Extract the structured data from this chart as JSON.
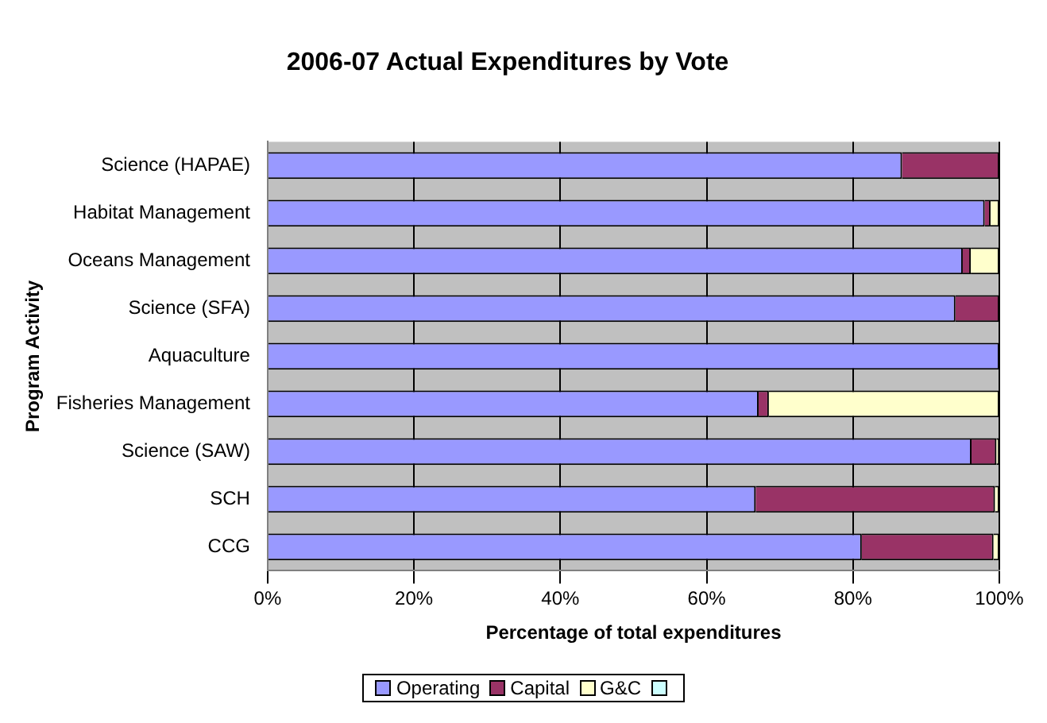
{
  "chart_data": {
    "type": "bar",
    "orientation": "horizontal",
    "stacked": true,
    "title": "2006-07 Actual Expenditures by Vote",
    "xlabel": "Percentage of total expenditures",
    "ylabel": "Program Activity",
    "categories": [
      "Science (HAPAE)",
      "Habitat Management",
      "Oceans Management",
      "Science (SFA)",
      "Aquaculture",
      "Fisheries Management",
      "Science (SAW)",
      "SCH",
      "CCG"
    ],
    "series": [
      {
        "name": "Operating",
        "color": "#9999ff",
        "values": [
          86.7,
          98.0,
          95.0,
          94.0,
          100,
          67.1,
          96.2,
          66.7,
          81.2
        ]
      },
      {
        "name": "Capital",
        "color": "#993366",
        "values": [
          13.3,
          0.8,
          1.1,
          6.0,
          0,
          1.4,
          3.4,
          32.7,
          18.0
        ]
      },
      {
        "name": "G&C",
        "color": "#ffffcc",
        "values": [
          0,
          1.2,
          3.9,
          null,
          0,
          31.5,
          0.4,
          0.6,
          0.8
        ]
      },
      {
        "color": "#ccffff",
        "values": [
          0,
          0,
          0,
          0,
          0,
          0,
          0,
          0,
          0
        ]
      }
    ],
    "xlim": [
      0,
      100
    ],
    "xticks": [
      {
        "value": 0,
        "label": "0%"
      },
      {
        "value": 20,
        "label": "20%"
      },
      {
        "value": 40,
        "label": "40%"
      },
      {
        "value": 60,
        "label": "60%"
      },
      {
        "value": 80,
        "label": "80%"
      },
      {
        "value": 100,
        "label": "100%"
      }
    ],
    "grid": "x",
    "legend": "bottom"
  }
}
